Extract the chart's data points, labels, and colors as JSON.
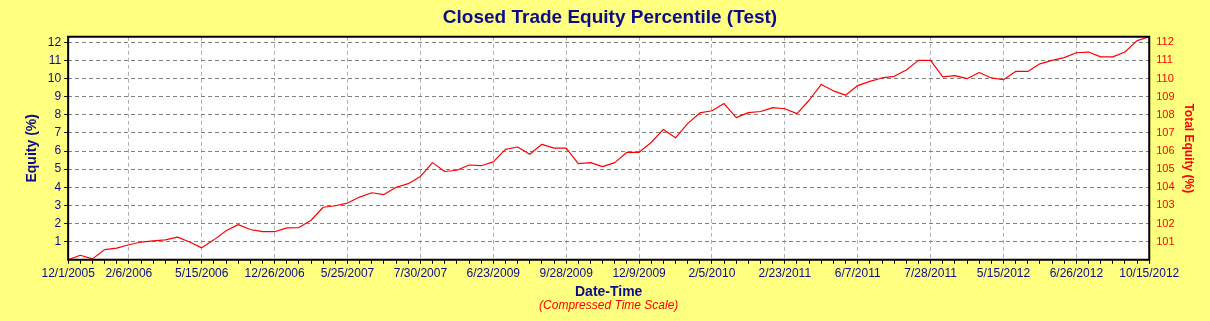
{
  "chart_data": {
    "type": "line",
    "title": "Closed Trade Equity Percentile (Test)",
    "xlabel": "Date-Time",
    "ylabel": "Equity (%)",
    "y2label": "Total Equity (%)",
    "annotations": [
      "(Compressed Time Scale)"
    ],
    "categories": [
      "12/1/2005",
      null,
      null,
      null,
      null,
      "2/6/2006",
      null,
      null,
      null,
      null,
      null,
      "5/15/2006",
      null,
      null,
      null,
      null,
      null,
      "12/26/2006",
      null,
      null,
      null,
      null,
      null,
      "5/25/2007",
      null,
      null,
      null,
      null,
      null,
      "7/30/2007",
      null,
      null,
      null,
      null,
      null,
      "6/23/2009",
      null,
      null,
      null,
      null,
      null,
      "9/28/2009",
      null,
      null,
      null,
      null,
      null,
      "12/9/2009",
      null,
      null,
      null,
      null,
      null,
      "2/5/2010",
      null,
      null,
      null,
      null,
      null,
      "2/23/2011",
      null,
      null,
      null,
      null,
      null,
      "6/7/2011",
      null,
      null,
      null,
      null,
      null,
      "7/28/2011",
      null,
      null,
      null,
      null,
      null,
      "5/15/2012",
      null,
      null,
      null,
      null,
      null,
      "6/26/2012",
      null,
      null,
      null,
      null,
      null,
      "10/15/2012"
    ],
    "series": [
      {
        "color": "#ff0000",
        "values": [
          0,
          0.25,
          0.05,
          0.56,
          0.64,
          0.83,
          0.98,
          1.04,
          1.1,
          1.25,
          0.98,
          0.66,
          1.1,
          1.6,
          1.94,
          1.67,
          1.55,
          1.55,
          1.76,
          1.78,
          2.18,
          2.9,
          2.98,
          3.13,
          3.46,
          3.7,
          3.6,
          4.0,
          4.2,
          4.6,
          5.36,
          4.87,
          4.94,
          5.23,
          5.19,
          5.4,
          6.09,
          6.22,
          5.82,
          6.37,
          6.16,
          6.16,
          5.31,
          5.36,
          5.14,
          5.36,
          5.93,
          5.93,
          6.47,
          7.19,
          6.73,
          7.51,
          8.1,
          8.22,
          8.62,
          7.84,
          8.12,
          8.18,
          8.39,
          8.33,
          8.06,
          8.8,
          9.67,
          9.32,
          9.08,
          9.61,
          9.84,
          10.03,
          10.12,
          10.47,
          11.0,
          11.0,
          10.09,
          10.16,
          9.99,
          10.33,
          10.03,
          9.93,
          10.39,
          10.39,
          10.81,
          11.0,
          11.15,
          11.42,
          11.46,
          11.19,
          11.19,
          11.46,
          12.09,
          12.3
        ]
      }
    ],
    "ylim": [
      0,
      12.3
    ],
    "yticks": [
      1,
      2,
      3,
      4,
      5,
      6,
      7,
      8,
      9,
      10,
      11,
      12
    ],
    "y2lim": [
      100,
      112.3
    ],
    "y2ticks": [
      101,
      102,
      103,
      104,
      105,
      106,
      107,
      108,
      109,
      110,
      111,
      112
    ],
    "grid": true,
    "legend": false,
    "marker": "none",
    "line_style": "solid"
  }
}
